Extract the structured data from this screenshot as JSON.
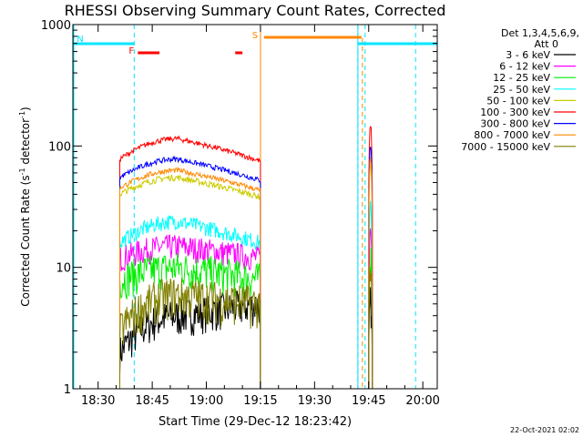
{
  "chart_data": {
    "type": "line",
    "title": "RHESSI Observing Summary Count Rates, Corrected",
    "xlabel": "Start Time (29-Dec-12 18:23:42)",
    "ylabel": "Corrected Count Rate (s⁻¹ detector⁻¹)",
    "ylabel_main": "Corrected Count Rate (s",
    "ylabel_sup1": "-1",
    "ylabel_mid": " detector",
    "ylabel_sup2": "-1",
    "ylabel_end": ")",
    "yscale": "log",
    "ylim": [
      1,
      1000
    ],
    "xlim_minutes": [
      "18:23",
      "20:04"
    ],
    "x_ticks": [
      "18:30",
      "18:45",
      "19:00",
      "19:15",
      "19:30",
      "19:45",
      "20:00"
    ],
    "y_ticks": [
      "1",
      "10",
      "100",
      "1000"
    ],
    "legend_title": [
      "Det 1,3,4,5,6,9,",
      "Att 0"
    ],
    "legend_position": "right",
    "timestamp": "22-Oct-2021 02:02",
    "flags": [
      {
        "label": "N",
        "color": "#00e5ff",
        "segments": [
          [
            "18:23",
            "18:40"
          ],
          [
            "19:42",
            "20:04"
          ]
        ]
      },
      {
        "label": "F",
        "color": "#ff0000",
        "segments": [
          [
            "18:41",
            "18:47"
          ],
          [
            "19:08",
            "19:10"
          ]
        ]
      },
      {
        "label": "S",
        "color": "#ff8800",
        "segments": [
          [
            "19:16",
            "19:43"
          ]
        ]
      }
    ],
    "night_boundaries": [
      "18:40",
      "19:42",
      "19:44",
      "19:58"
    ],
    "data_gap": [
      "19:15",
      "19:43"
    ],
    "series": [
      {
        "name": "3 - 6 keV",
        "color": "#000000",
        "level_start": 2,
        "level_peak": 4,
        "level_end": 5
      },
      {
        "name": "6 - 12 keV",
        "color": "#ff00ff",
        "level_start": 12,
        "level_peak": 15,
        "level_end": 12
      },
      {
        "name": "12 - 25 keV",
        "color": "#00ee00",
        "level_start": 8,
        "level_peak": 10,
        "level_end": 8
      },
      {
        "name": "25 - 50 keV",
        "color": "#00ffff",
        "level_start": 16,
        "level_peak": 24,
        "level_end": 16
      },
      {
        "name": "50 - 100 keV",
        "color": "#cccc00",
        "level_start": 40,
        "level_peak": 55,
        "level_end": 38
      },
      {
        "name": "100 - 300 keV",
        "color": "#ff0000",
        "level_start": 78,
        "level_peak": 115,
        "level_end": 75
      },
      {
        "name": "300 - 800 keV",
        "color": "#0000ff",
        "level_start": 55,
        "level_peak": 78,
        "level_end": 52
      },
      {
        "name": "800 - 7000 keV",
        "color": "#ff8800",
        "level_start": 45,
        "level_peak": 63,
        "level_end": 43
      },
      {
        "name": "7000 - 15000 keV",
        "color": "#808000",
        "level_start": 3,
        "level_peak": 6,
        "level_end": 5
      }
    ]
  }
}
